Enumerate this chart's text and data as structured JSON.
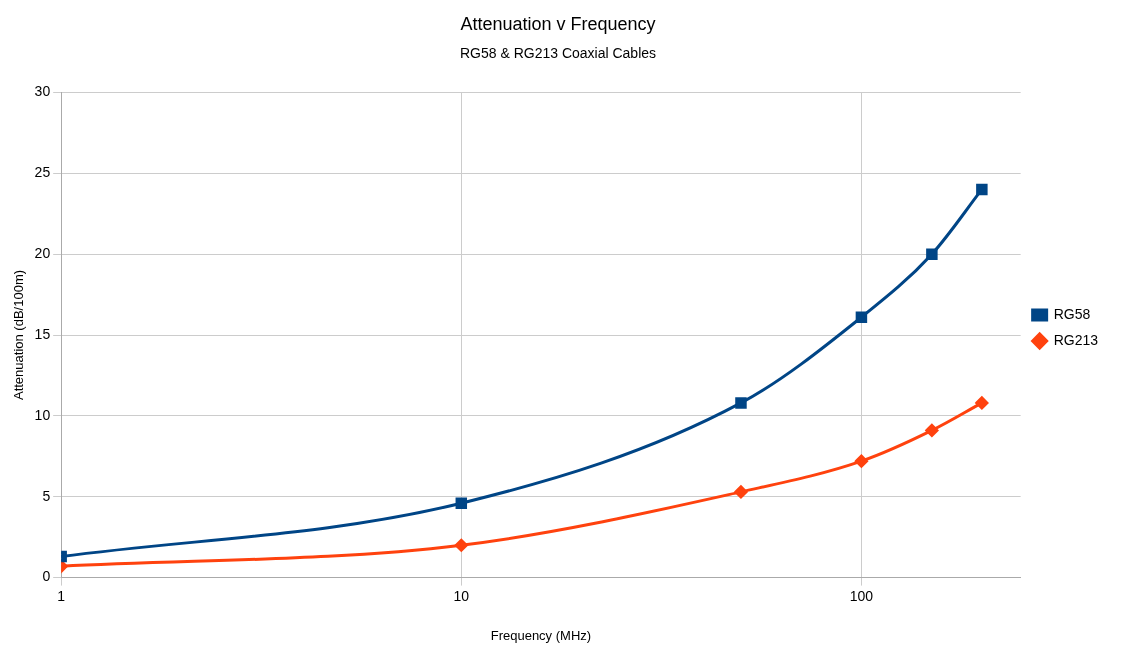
{
  "chart_data": {
    "type": "line",
    "title": "Attenuation v Frequency",
    "subtitle": "RG58 & RG213 Coaxial Cables",
    "xlabel": "Frequency (MHz)",
    "ylabel": "Attenuation (dB/100m)",
    "x": [
      1,
      10,
      50,
      100,
      150,
      200
    ],
    "series": [
      {
        "name": "RG58",
        "color": "#004586",
        "marker": "square",
        "values": [
          1.3,
          4.6,
          10.8,
          16.1,
          20,
          24
        ]
      },
      {
        "name": "RG213",
        "color": "#ff420e",
        "marker": "diamond",
        "values": [
          0.7,
          2.0,
          5.3,
          7.2,
          9.1,
          10.8
        ]
      }
    ],
    "log": "x",
    "xlim": [
      1,
      250
    ],
    "xticks": [
      1,
      10,
      100
    ],
    "ylim": [
      0,
      30
    ],
    "yticks": [
      0,
      5,
      10,
      15,
      20,
      25,
      30
    ],
    "grid": true,
    "legend": "right"
  }
}
